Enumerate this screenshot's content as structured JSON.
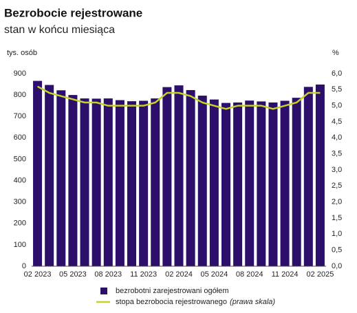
{
  "chart_data": {
    "type": "bar-line",
    "title": "Bezrobocie rejestrowane",
    "subtitle": "stan w końcu miesiąca",
    "y_label": "tys. osób",
    "y2_label": "%",
    "categories": [
      "02 2023",
      null,
      null,
      "05 2023",
      null,
      null,
      "08 2023",
      null,
      null,
      "11 2023",
      null,
      null,
      "02 2024",
      null,
      null,
      "05 2024",
      null,
      null,
      "08 2024",
      null,
      null,
      "11 2024",
      null,
      null,
      "02 2025"
    ],
    "series": [
      {
        "name": "bezrobotni zarejestrowani ogółem",
        "type": "bar",
        "color": "#2b0f6b",
        "values": [
          866,
          847,
          822,
          800,
          784,
          783,
          784,
          776,
          771,
          773,
          784,
          837,
          845,
          823,
          797,
          779,
          763,
          765,
          774,
          770,
          765,
          773,
          787,
          838,
          849
        ]
      },
      {
        "name": "stopa bezrobocia rejestrowanego",
        "name_note": "(prawa skala)",
        "type": "line",
        "axis": "y2",
        "color": "#c5d12b",
        "values": [
          5.6,
          5.4,
          5.3,
          5.2,
          5.1,
          5.1,
          5.0,
          5.0,
          5.0,
          5.0,
          5.1,
          5.4,
          5.4,
          5.3,
          5.1,
          5.0,
          4.9,
          5.0,
          5.0,
          5.0,
          4.9,
          5.0,
          5.1,
          5.4,
          5.4
        ]
      }
    ],
    "ylim": [
      0,
      900
    ],
    "yticks": [
      0,
      100,
      200,
      300,
      400,
      500,
      600,
      700,
      800,
      900
    ],
    "y2lim": [
      0,
      6
    ],
    "y2ticks": [
      {
        "value": 0,
        "label": "0,0"
      },
      {
        "value": 0.5,
        "label": "0,5"
      },
      {
        "value": 1,
        "label": "1,0"
      },
      {
        "value": 1.5,
        "label": "1,5"
      },
      {
        "value": 2,
        "label": "2,0"
      },
      {
        "value": 2.5,
        "label": "2,5"
      },
      {
        "value": 3,
        "label": "3,0"
      },
      {
        "value": 3.5,
        "label": "3,5"
      },
      {
        "value": 4,
        "label": "4,0"
      },
      {
        "value": 4.5,
        "label": "4,5"
      },
      {
        "value": 5,
        "label": "5,0"
      },
      {
        "value": 5.5,
        "label": "5,5"
      },
      {
        "value": 6,
        "label": "6,0"
      }
    ]
  }
}
